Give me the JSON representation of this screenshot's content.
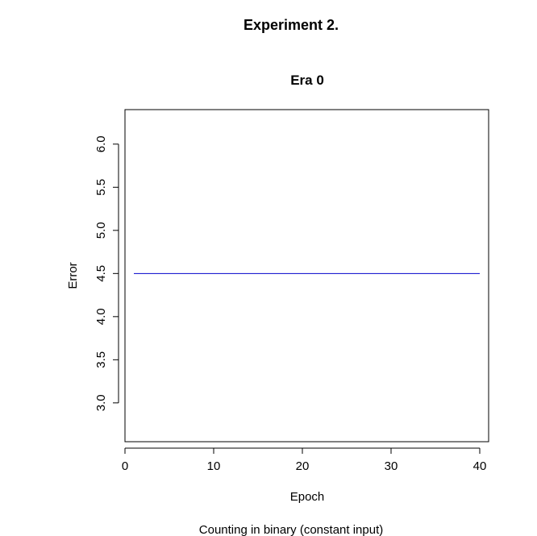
{
  "figure": {
    "title": "Experiment 2.",
    "caption": "Counting in binary (constant input)"
  },
  "chart_data": {
    "type": "line",
    "title": "Era 0",
    "xlabel": "Epoch",
    "ylabel": "Error",
    "xlim": [
      0,
      41
    ],
    "ylim": [
      2.55,
      6.4
    ],
    "xticks": [
      0,
      10,
      20,
      30,
      40
    ],
    "yticks": [
      3.0,
      3.5,
      4.0,
      4.5,
      5.0,
      5.5,
      6.0
    ],
    "xtick_labels": [
      "0",
      "10",
      "20",
      "30",
      "40"
    ],
    "ytick_labels": [
      "3.0",
      "3.5",
      "4.0",
      "4.5",
      "5.0",
      "5.5",
      "6.0"
    ],
    "grid": false,
    "legend": "none",
    "series": [
      {
        "color": "#0000cc",
        "x": [
          1,
          40
        ],
        "y": [
          4.5,
          4.5
        ]
      }
    ]
  }
}
